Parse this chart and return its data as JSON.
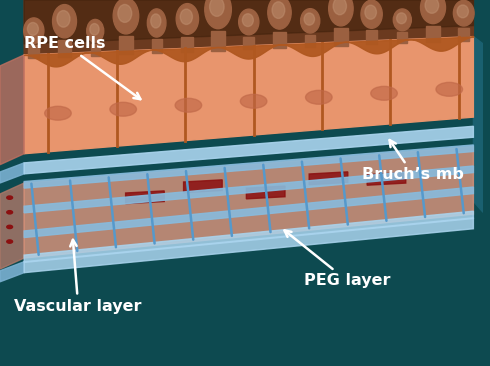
{
  "background_color": "#0d4a50",
  "labels": {
    "rpe": "RPE cells",
    "bruchs": "Bruch’s mb",
    "peg": "PEG layer",
    "vascular": "Vascular layer"
  },
  "label_color": "#ffffff",
  "label_fontsize": 11.5,
  "label_fontweight": "bold",
  "rpe_cell_color": "#e8956d",
  "rpe_cell_outline": "#b05820",
  "rpe_bump_dark": "#6b3a1f",
  "rpe_bump_mid": "#9b6040",
  "rpe_nucleus_color": "#d4785a",
  "peg_frame_color": "#5599cc",
  "peg_frame_light": "#88bbdd",
  "vascular_layer_color": "#d4917a",
  "vascular_blood_color": "#8b1010",
  "bruchs_color": "#aad4ee",
  "bruchs_dark": "#7ab0d0",
  "left_face_rpe": "#c07050",
  "left_face_vasc": "#b08070",
  "left_face_blue": "#7ab0d0"
}
